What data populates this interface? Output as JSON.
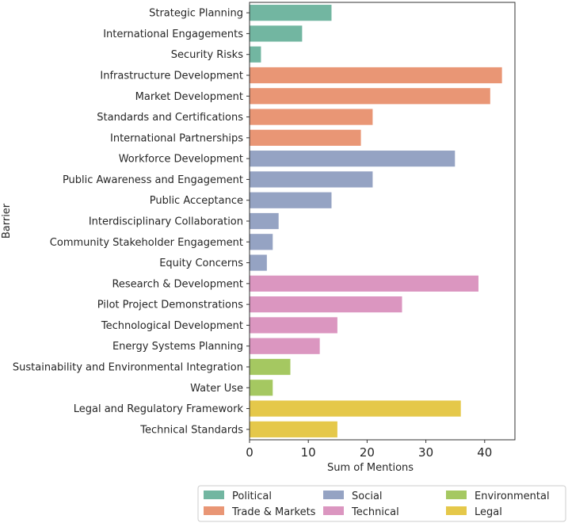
{
  "chart_data": {
    "type": "bar",
    "orientation": "horizontal",
    "xlabel": "Sum of Mentions",
    "ylabel": "Barrier",
    "xlim": [
      0,
      45.15
    ],
    "xticks": [
      0,
      10,
      20,
      30,
      40
    ],
    "grid": false,
    "legend_placement": "bottom-right, below plot",
    "categories": [
      "Strategic Planning",
      "International Engagements",
      "Security Risks",
      "Infrastructure Development",
      "Market Development",
      "Standards and Certifications",
      "International Partnerships",
      "Workforce Development",
      "Public Awareness and Engagement",
      "Public Acceptance",
      "Interdisciplinary Collaboration",
      "Community Stakeholder Engagement",
      "Equity Concerns",
      "Research & Development",
      "Pilot Project Demonstrations",
      "Technological Development",
      "Energy Systems Planning",
      "Sustainability and Environmental Integration",
      "Water Use",
      "Legal and Regulatory Framework",
      "Technical Standards"
    ],
    "values": [
      14,
      9,
      2,
      43,
      41,
      21,
      19,
      35,
      21,
      14,
      5,
      4,
      3,
      39,
      26,
      15,
      12,
      7,
      4,
      36,
      15
    ],
    "groups": [
      "Political",
      "Political",
      "Political",
      "Trade & Markets",
      "Trade & Markets",
      "Trade & Markets",
      "Trade & Markets",
      "Social",
      "Social",
      "Social",
      "Social",
      "Social",
      "Social",
      "Technical",
      "Technical",
      "Technical",
      "Technical",
      "Environmental",
      "Environmental",
      "Legal",
      "Legal"
    ],
    "legend": [
      {
        "name": "Political",
        "color": "#72b6a1"
      },
      {
        "name": "Trade & Markets",
        "color": "#e99675"
      },
      {
        "name": "Social",
        "color": "#95a3c3"
      },
      {
        "name": "Technical",
        "color": "#db96c0"
      },
      {
        "name": "Environmental",
        "color": "#a5c861"
      },
      {
        "name": "Legal",
        "color": "#e5c84a"
      }
    ]
  }
}
